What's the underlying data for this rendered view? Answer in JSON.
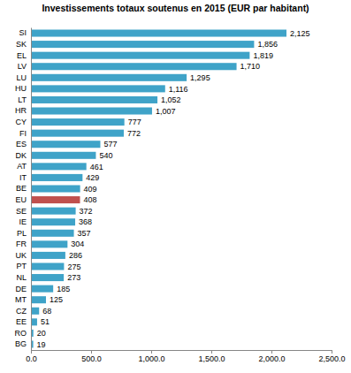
{
  "chart_data": {
    "type": "bar",
    "orientation": "horizontal",
    "title": "Investissements totaux soutenus en 2015 (EUR par habitant)",
    "categories": [
      "SI",
      "SK",
      "EL",
      "LV",
      "LU",
      "HU",
      "LT",
      "HR",
      "CY",
      "FI",
      "ES",
      "DK",
      "AT",
      "IT",
      "BE",
      "EU",
      "SE",
      "IE",
      "PL",
      "FR",
      "UK",
      "PT",
      "NL",
      "DE",
      "MT",
      "CZ",
      "EE",
      "RO",
      "BG"
    ],
    "values": [
      2125,
      1856,
      1819,
      1710,
      1295,
      1116,
      1052,
      1007,
      777,
      772,
      577,
      540,
      461,
      429,
      409,
      408,
      372,
      368,
      357,
      304,
      286,
      275,
      273,
      185,
      125,
      68,
      51,
      20,
      19
    ],
    "value_labels": [
      "2,125",
      "1,856",
      "1,819",
      "1,710",
      "1,295",
      "1,116",
      "1,052",
      "1,007",
      "777",
      "772",
      "577",
      "540",
      "461",
      "429",
      "409",
      "408",
      "372",
      "368",
      "357",
      "304",
      "286",
      "275",
      "273",
      "185",
      "125",
      "68",
      "51",
      "20",
      "19"
    ],
    "colors": [
      "#3fa3c8",
      "#3fa3c8",
      "#3fa3c8",
      "#3fa3c8",
      "#3fa3c8",
      "#3fa3c8",
      "#3fa3c8",
      "#3fa3c8",
      "#3fa3c8",
      "#3fa3c8",
      "#3fa3c8",
      "#3fa3c8",
      "#3fa3c8",
      "#3fa3c8",
      "#3fa3c8",
      "#c0504d",
      "#3fa3c8",
      "#3fa3c8",
      "#3fa3c8",
      "#3fa3c8",
      "#3fa3c8",
      "#3fa3c8",
      "#3fa3c8",
      "#3fa3c8",
      "#3fa3c8",
      "#3fa3c8",
      "#3fa3c8",
      "#3fa3c8",
      "#3fa3c8"
    ],
    "xlim": [
      0,
      2500
    ],
    "xticks": [
      {
        "value": 0,
        "label": "0.0"
      },
      {
        "value": 500,
        "label": "500.0"
      },
      {
        "value": 1000,
        "label": "1,000.0"
      },
      {
        "value": 1500,
        "label": "1,500.0"
      },
      {
        "value": 2000,
        "label": "2,000.0"
      },
      {
        "value": 2500,
        "label": "2,500.0"
      }
    ],
    "grid": false,
    "data_labels": true
  }
}
